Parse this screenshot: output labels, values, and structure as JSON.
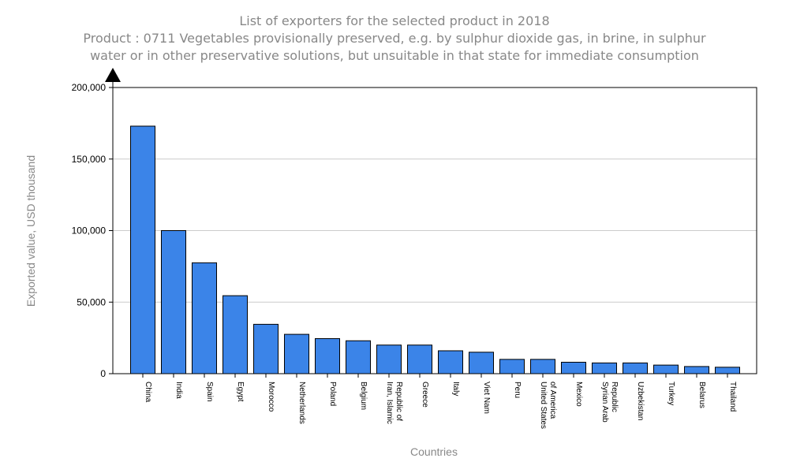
{
  "chart_data": {
    "type": "bar",
    "title": "List of exporters for the selected product in 2018",
    "subtitle_lines": [
      "Product : 0711 Vegetables provisionally preserved, e.g. by sulphur dioxide gas, in brine, in sulphur",
      "water or in other preservative solutions, but unsuitable in that state for immediate consumption"
    ],
    "xlabel": "Countries",
    "ylabel": "Exported value, USD thousand",
    "ylim": [
      0,
      200000
    ],
    "yticks": [
      0,
      50000,
      100000,
      150000,
      200000
    ],
    "ytick_labels": [
      "0",
      "50,000",
      "100,000",
      "150,000",
      "200,000"
    ],
    "grid": true,
    "bar_color": "#3b84e8",
    "categories": [
      [
        "China"
      ],
      [
        "India"
      ],
      [
        "Spain"
      ],
      [
        "Egypt"
      ],
      [
        "Morocco"
      ],
      [
        "Netherlands"
      ],
      [
        "Poland"
      ],
      [
        "Belgium"
      ],
      [
        "Iran, Islamic",
        "Republic of"
      ],
      [
        "Greece"
      ],
      [
        "Italy"
      ],
      [
        "Viet Nam"
      ],
      [
        "Peru"
      ],
      [
        "United States",
        "of America"
      ],
      [
        "Mexico"
      ],
      [
        "Syrian Arab",
        "Republic"
      ],
      [
        "Uzbekistan"
      ],
      [
        "Turkey"
      ],
      [
        "Belarus"
      ],
      [
        "Thailand"
      ]
    ],
    "values": [
      173000,
      100000,
      77500,
      54500,
      34500,
      27500,
      24500,
      23000,
      20000,
      20000,
      16000,
      15000,
      10000,
      10000,
      8000,
      7500,
      7500,
      6000,
      5000,
      4500
    ]
  }
}
